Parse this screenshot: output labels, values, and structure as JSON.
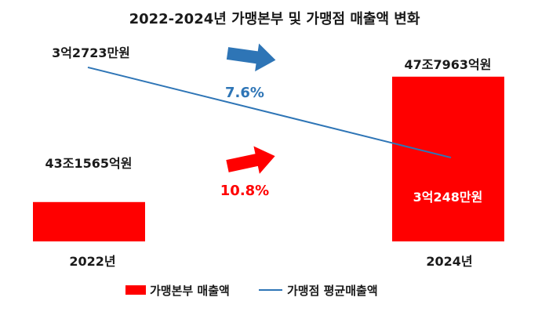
{
  "colors": {
    "bar": "#ff0000",
    "line": "#2e75b6",
    "arrow_blue": "#2e75b6",
    "arrow_red": "#ff0000",
    "text": "#1a1a1a"
  },
  "chart_data": {
    "type": "bar",
    "title": "2022-2024년 가맹본부 및 가맹점 매출액 변화",
    "categories": [
      "2022년",
      "2024년"
    ],
    "series": [
      {
        "name": "가맹본부 매출액",
        "type": "bar",
        "values": [
          431565,
          477963
        ],
        "unit": "억원",
        "data_labels": [
          "43조1565억원",
          "47조7963억원"
        ]
      },
      {
        "name": "가맹점 평균매출액",
        "type": "line",
        "values": [
          32723,
          30248
        ],
        "unit": "만원",
        "data_labels": [
          "3억2723만원",
          "3억248만원"
        ]
      }
    ],
    "annotations": [
      {
        "text": "7.6%",
        "color": "#2e75b6",
        "icon": "arrow-right-icon"
      },
      {
        "text": "10.8%",
        "color": "#ff0000",
        "icon": "arrow-right-icon"
      }
    ],
    "legend": {
      "placement": "bottom",
      "entries": [
        "가맹본부 매출액",
        "가맹점 평균매출액"
      ]
    },
    "grid": false
  }
}
